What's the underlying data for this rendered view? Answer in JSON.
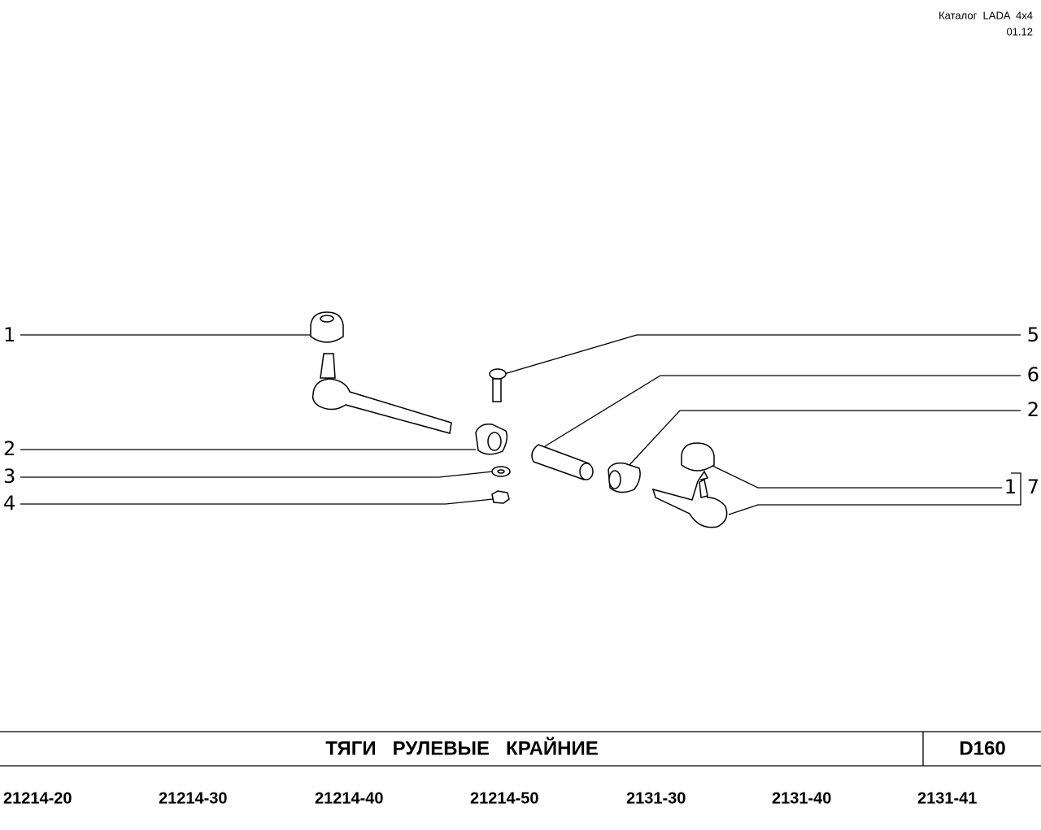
{
  "header": {
    "catalog": "Каталог  LADA  4x4",
    "date": "01.12"
  },
  "callouts": [
    {
      "label": "1"
    },
    {
      "label": "2"
    },
    {
      "label": "3"
    },
    {
      "label": "4"
    },
    {
      "label": "5"
    },
    {
      "label": "6"
    },
    {
      "label": "2"
    },
    {
      "label": "1"
    },
    {
      "label": "7"
    }
  ],
  "title": "ТЯГИ   РУЛЕВЫЕ   КРАЙНИЕ",
  "code": "D160",
  "models": [
    "21214-20",
    "21214-30",
    "21214-40",
    "21214-50",
    "2131-30",
    "2131-40",
    "2131-41"
  ]
}
